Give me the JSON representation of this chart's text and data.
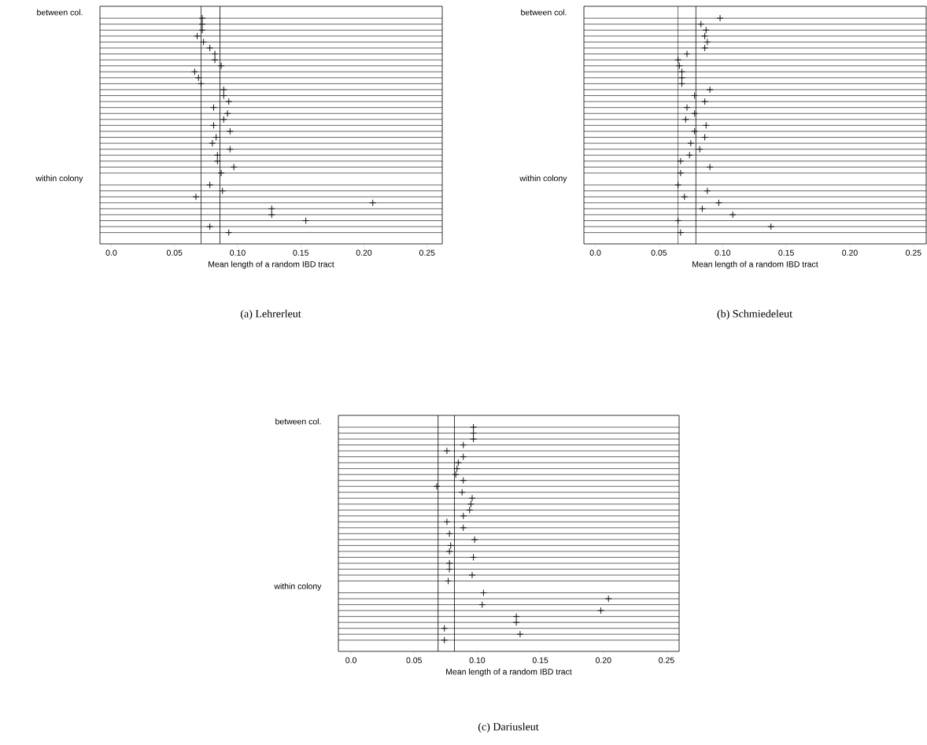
{
  "chart_data": [
    {
      "type": "scatter",
      "orientation": "horizontal",
      "marker": "cross",
      "grid": "y",
      "xlabel": "Mean length of a random IBD tract",
      "annotations": [
        "(a) Lehrerleut"
      ],
      "categories": [
        "between col.",
        null,
        null,
        null,
        null,
        null,
        null,
        null,
        null,
        null,
        null,
        null,
        null,
        null,
        null,
        null,
        null,
        null,
        null,
        null,
        null,
        null,
        null,
        null,
        null,
        null,
        null,
        null,
        "within colony",
        null,
        null,
        null,
        null,
        null,
        null,
        null,
        null,
        null
      ],
      "values": [
        null,
        0.072,
        0.072,
        0.072,
        0.068,
        0.073,
        0.078,
        0.082,
        0.082,
        0.087,
        0.066,
        0.069,
        0.071,
        0.089,
        0.089,
        0.093,
        0.081,
        0.092,
        0.089,
        0.081,
        0.094,
        0.083,
        0.08,
        0.094,
        0.084,
        0.084,
        0.097,
        0.087,
        null,
        0.078,
        0.088,
        0.067,
        0.207,
        0.127,
        0.127,
        0.154,
        0.078,
        0.093
      ],
      "xlim": [
        -0.009,
        0.262
      ],
      "xticks": [
        {
          "value": 0,
          "label": "0.0"
        },
        0.05,
        {
          "value": 0.1,
          "label": "0.10"
        },
        0.15,
        {
          "value": 0.2,
          "label": "0.20"
        },
        0.25
      ],
      "ref_lines": [
        {
          "axis": "x",
          "value": 0.071
        },
        {
          "axis": "x",
          "value": 0.086
        }
      ]
    },
    {
      "type": "scatter",
      "orientation": "horizontal",
      "marker": "cross",
      "grid": "y",
      "xlabel": "Mean length of a random IBD tract",
      "annotations": [
        "(b) Schmiedeleut"
      ],
      "categories": [
        "between col.",
        null,
        null,
        null,
        null,
        null,
        null,
        null,
        null,
        null,
        null,
        null,
        null,
        null,
        null,
        null,
        null,
        null,
        null,
        null,
        null,
        null,
        null,
        null,
        null,
        null,
        null,
        null,
        "within colony",
        null,
        null,
        null,
        null,
        null,
        null,
        null,
        null,
        null
      ],
      "values": [
        null,
        0.098,
        0.083,
        0.087,
        0.086,
        0.088,
        0.086,
        0.072,
        0.065,
        0.066,
        0.068,
        0.068,
        0.068,
        0.09,
        0.078,
        0.086,
        0.072,
        0.078,
        0.071,
        0.087,
        0.078,
        0.086,
        0.075,
        0.082,
        0.074,
        0.067,
        0.09,
        0.067,
        null,
        0.065,
        0.088,
        0.07,
        0.097,
        0.084,
        0.108,
        0.065,
        0.138,
        0.067
      ],
      "xlim": [
        -0.009,
        0.26
      ],
      "xticks": [
        {
          "value": 0,
          "label": "0.0"
        },
        0.05,
        {
          "value": 0.1,
          "label": "0.10"
        },
        0.15,
        {
          "value": 0.2,
          "label": "0.20"
        },
        0.25
      ],
      "ref_lines": [
        {
          "axis": "x",
          "value": 0.065
        },
        {
          "axis": "x",
          "value": 0.079
        }
      ]
    },
    {
      "type": "scatter",
      "orientation": "horizontal",
      "marker": "cross",
      "grid": "y",
      "xlabel": "Mean length of a random IBD tract",
      "annotations": [
        "(c) Dariusleut"
      ],
      "categories": [
        "between col.",
        null,
        null,
        null,
        null,
        null,
        null,
        null,
        null,
        null,
        null,
        null,
        null,
        null,
        null,
        null,
        null,
        null,
        null,
        null,
        null,
        null,
        null,
        null,
        null,
        null,
        null,
        null,
        "within colony",
        null,
        null,
        null,
        null,
        null,
        null,
        null,
        null,
        null
      ],
      "values": [
        null,
        0.097,
        0.097,
        0.097,
        0.089,
        0.076,
        0.089,
        0.085,
        0.084,
        0.083,
        0.089,
        0.068,
        0.088,
        0.096,
        0.095,
        0.094,
        0.089,
        0.076,
        0.089,
        0.078,
        0.098,
        0.079,
        0.078,
        0.097,
        0.078,
        0.078,
        0.096,
        0.077,
        null,
        0.105,
        0.204,
        0.104,
        0.198,
        0.131,
        0.131,
        0.074,
        0.134,
        0.074
      ],
      "xlim": [
        -0.01,
        0.26
      ],
      "xticks": [
        {
          "value": 0,
          "label": "0.0"
        },
        0.05,
        {
          "value": 0.1,
          "label": "0.10"
        },
        0.15,
        {
          "value": 0.2,
          "label": "0.20"
        },
        0.25
      ],
      "ref_lines": [
        {
          "axis": "x",
          "value": 0.069
        },
        {
          "axis": "x",
          "value": 0.082
        }
      ]
    }
  ]
}
